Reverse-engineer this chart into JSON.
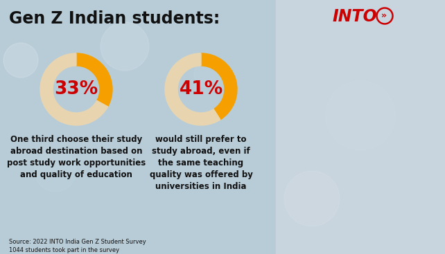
{
  "title": "Gen Z Indian students:",
  "title_color": "#111111",
  "title_fontsize": 17,
  "bg_color_left": "#b8ccd8",
  "bg_color_right": "#d0dce6",
  "logo_color": "#cc0000",
  "logo_fontsize": 17,
  "donut1_value": 33,
  "donut1_label": "33%",
  "donut2_value": 41,
  "donut2_label": "41%",
  "donut_active_color": "#f5a000",
  "donut_inactive_color": "#e8d5b0",
  "donut_label_color": "#cc0000",
  "donut_label_fontsize": 19,
  "text1": "One third choose their study\nabroad destination based on\npost study work opportunities\nand quality of education",
  "text2": "would still prefer to\nstudy abroad, even if\nthe same teaching\nquality was offered by\nuniversities in India",
  "text_color": "#111111",
  "text_fontsize": 8.5,
  "source_text": "Source: 2022 INTO India Gen Z Student Survey\n1044 students took part in the survey",
  "source_fontsize": 6.0,
  "fig_width": 6.42,
  "fig_height": 3.67,
  "dpi": 100
}
